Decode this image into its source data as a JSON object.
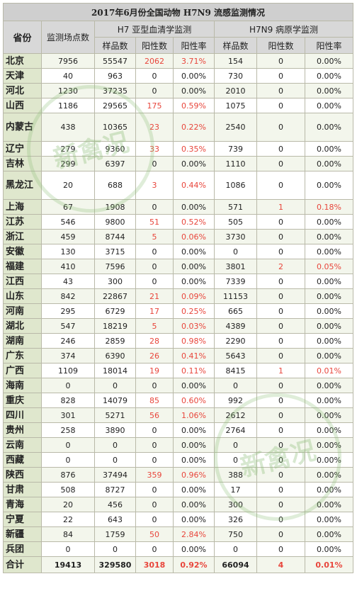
{
  "title": "2017年6月份全国动物 H7N9 流感监测情况",
  "headers": {
    "province": "省份",
    "sites": "监测场点数",
    "serology_group": "H7 亚型血清学监测",
    "pathogen_group": "H7N9 病原学监测",
    "samples": "样品数",
    "positives": "阳性数",
    "rate": "阳性率"
  },
  "rows": [
    {
      "province": "北京",
      "sites": "7956",
      "s_samples": "55547",
      "s_pos": "2062",
      "s_rate": "3.71%",
      "p_samples": "154",
      "p_pos": "0",
      "p_rate": "0.00%"
    },
    {
      "province": "天津",
      "sites": "40",
      "s_samples": "963",
      "s_pos": "0",
      "s_rate": "0.00%",
      "p_samples": "730",
      "p_pos": "0",
      "p_rate": "0.00%"
    },
    {
      "province": "河北",
      "sites": "1230",
      "s_samples": "37235",
      "s_pos": "0",
      "s_rate": "0.00%",
      "p_samples": "2010",
      "p_pos": "0",
      "p_rate": "0.00%"
    },
    {
      "province": "山西",
      "sites": "1186",
      "s_samples": "29565",
      "s_pos": "175",
      "s_rate": "0.59%",
      "p_samples": "1075",
      "p_pos": "0",
      "p_rate": "0.00%"
    },
    {
      "province": "内蒙古",
      "sites": "438",
      "s_samples": "10365",
      "s_pos": "23",
      "s_rate": "0.22%",
      "p_samples": "2540",
      "p_pos": "0",
      "p_rate": "0.00%",
      "tall": true
    },
    {
      "province": "辽宁",
      "sites": "279",
      "s_samples": "9360",
      "s_pos": "33",
      "s_rate": "0.35%",
      "p_samples": "739",
      "p_pos": "0",
      "p_rate": "0.00%"
    },
    {
      "province": "吉林",
      "sites": "299",
      "s_samples": "6397",
      "s_pos": "0",
      "s_rate": "0.00%",
      "p_samples": "1110",
      "p_pos": "0",
      "p_rate": "0.00%"
    },
    {
      "province": "黑龙江",
      "sites": "20",
      "s_samples": "688",
      "s_pos": "3",
      "s_rate": "0.44%",
      "p_samples": "1086",
      "p_pos": "0",
      "p_rate": "0.00%",
      "tall": true
    },
    {
      "province": "上海",
      "sites": "67",
      "s_samples": "1908",
      "s_pos": "0",
      "s_rate": "0.00%",
      "p_samples": "571",
      "p_pos": "1",
      "p_rate": "0.18%"
    },
    {
      "province": "江苏",
      "sites": "546",
      "s_samples": "9800",
      "s_pos": "51",
      "s_rate": "0.52%",
      "p_samples": "505",
      "p_pos": "0",
      "p_rate": "0.00%"
    },
    {
      "province": "浙江",
      "sites": "459",
      "s_samples": "8744",
      "s_pos": "5",
      "s_rate": "0.06%",
      "p_samples": "3730",
      "p_pos": "0",
      "p_rate": "0.00%"
    },
    {
      "province": "安徽",
      "sites": "130",
      "s_samples": "3715",
      "s_pos": "0",
      "s_rate": "0.00%",
      "p_samples": "0",
      "p_pos": "0",
      "p_rate": "0.00%"
    },
    {
      "province": "福建",
      "sites": "410",
      "s_samples": "7596",
      "s_pos": "0",
      "s_rate": "0.00%",
      "p_samples": "3801",
      "p_pos": "2",
      "p_rate": "0.05%"
    },
    {
      "province": "江西",
      "sites": "43",
      "s_samples": "300",
      "s_pos": "0",
      "s_rate": "0.00%",
      "p_samples": "7339",
      "p_pos": "0",
      "p_rate": "0.00%"
    },
    {
      "province": "山东",
      "sites": "842",
      "s_samples": "22867",
      "s_pos": "21",
      "s_rate": "0.09%",
      "p_samples": "11153",
      "p_pos": "0",
      "p_rate": "0.00%"
    },
    {
      "province": "河南",
      "sites": "295",
      "s_samples": "6729",
      "s_pos": "17",
      "s_rate": "0.25%",
      "p_samples": "665",
      "p_pos": "0",
      "p_rate": "0.00%"
    },
    {
      "province": "湖北",
      "sites": "547",
      "s_samples": "18219",
      "s_pos": "5",
      "s_rate": "0.03%",
      "p_samples": "4389",
      "p_pos": "0",
      "p_rate": "0.00%"
    },
    {
      "province": "湖南",
      "sites": "246",
      "s_samples": "2859",
      "s_pos": "28",
      "s_rate": "0.98%",
      "p_samples": "2290",
      "p_pos": "0",
      "p_rate": "0.00%"
    },
    {
      "province": "广东",
      "sites": "374",
      "s_samples": "6390",
      "s_pos": "26",
      "s_rate": "0.41%",
      "p_samples": "5643",
      "p_pos": "0",
      "p_rate": "0.00%"
    },
    {
      "province": "广西",
      "sites": "1109",
      "s_samples": "18014",
      "s_pos": "19",
      "s_rate": "0.11%",
      "p_samples": "8415",
      "p_pos": "1",
      "p_rate": "0.01%"
    },
    {
      "province": "海南",
      "sites": "0",
      "s_samples": "0",
      "s_pos": "0",
      "s_rate": "0.00%",
      "p_samples": "0",
      "p_pos": "0",
      "p_rate": "0.00%"
    },
    {
      "province": "重庆",
      "sites": "828",
      "s_samples": "14079",
      "s_pos": "85",
      "s_rate": "0.60%",
      "p_samples": "992",
      "p_pos": "0",
      "p_rate": "0.00%"
    },
    {
      "province": "四川",
      "sites": "301",
      "s_samples": "5271",
      "s_pos": "56",
      "s_rate": "1.06%",
      "p_samples": "2612",
      "p_pos": "0",
      "p_rate": "0.00%"
    },
    {
      "province": "贵州",
      "sites": "258",
      "s_samples": "3890",
      "s_pos": "0",
      "s_rate": "0.00%",
      "p_samples": "2764",
      "p_pos": "0",
      "p_rate": "0.00%"
    },
    {
      "province": "云南",
      "sites": "0",
      "s_samples": "0",
      "s_pos": "0",
      "s_rate": "0.00%",
      "p_samples": "0",
      "p_pos": "0",
      "p_rate": "0.00%"
    },
    {
      "province": "西藏",
      "sites": "0",
      "s_samples": "0",
      "s_pos": "0",
      "s_rate": "0.00%",
      "p_samples": "0",
      "p_pos": "0",
      "p_rate": "0.00%"
    },
    {
      "province": "陕西",
      "sites": "876",
      "s_samples": "37494",
      "s_pos": "359",
      "s_rate": "0.96%",
      "p_samples": "388",
      "p_pos": "0",
      "p_rate": "0.00%"
    },
    {
      "province": "甘肃",
      "sites": "508",
      "s_samples": "8727",
      "s_pos": "0",
      "s_rate": "0.00%",
      "p_samples": "17",
      "p_pos": "0",
      "p_rate": "0.00%"
    },
    {
      "province": "青海",
      "sites": "20",
      "s_samples": "456",
      "s_pos": "0",
      "s_rate": "0.00%",
      "p_samples": "300",
      "p_pos": "0",
      "p_rate": "0.00%"
    },
    {
      "province": "宁夏",
      "sites": "22",
      "s_samples": "643",
      "s_pos": "0",
      "s_rate": "0.00%",
      "p_samples": "326",
      "p_pos": "0",
      "p_rate": "0.00%"
    },
    {
      "province": "新疆",
      "sites": "84",
      "s_samples": "1759",
      "s_pos": "50",
      "s_rate": "2.84%",
      "p_samples": "750",
      "p_pos": "0",
      "p_rate": "0.00%"
    },
    {
      "province": "兵团",
      "sites": "0",
      "s_samples": "0",
      "s_pos": "0",
      "s_rate": "0.00%",
      "p_samples": "0",
      "p_pos": "0",
      "p_rate": "0.00%"
    }
  ],
  "total": {
    "province": "合计",
    "sites": "19413",
    "s_samples": "329580",
    "s_pos": "3018",
    "s_rate": "0.92%",
    "p_samples": "66094",
    "p_pos": "4",
    "p_rate": "0.01%"
  },
  "watermark": "新禽况",
  "colors": {
    "positive_text": "#e8463c",
    "province_bg": "#dfe7cd",
    "header_bg": "#d8d8d8",
    "title_bg": "#cfcfcf"
  }
}
